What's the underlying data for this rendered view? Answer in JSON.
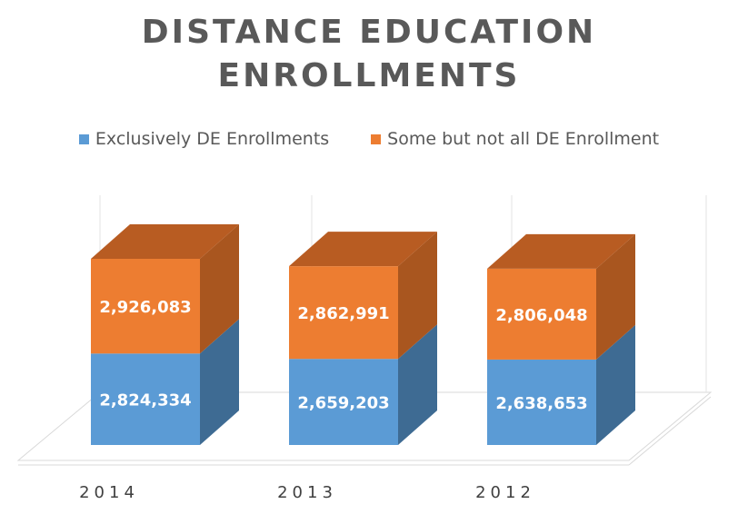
{
  "chart_data": {
    "type": "bar",
    "stacked": true,
    "three_d": true,
    "title_lines": [
      "DISTANCE EDUCATION",
      "ENROLLMENTS"
    ],
    "categories": [
      "2014",
      "2013",
      "2012"
    ],
    "series": [
      {
        "name": "Exclusively DE Enrollments",
        "values": [
          2824334,
          2659203,
          2638653
        ],
        "labels": [
          "2,824,334",
          "2,659,203",
          "2,638,653"
        ],
        "color": "#5B9BD5",
        "side_color": "#3E6B93",
        "top_color": "#7FB2E0"
      },
      {
        "name": "Some but not all DE Enrollment",
        "values": [
          2926083,
          2862991,
          2806048
        ],
        "labels": [
          "2,926,083",
          "2,862,991",
          "2,806,048"
        ],
        "color": "#ED7D31",
        "side_color": "#A9561F",
        "top_color": "#B85C22"
      }
    ],
    "legend_position": "top",
    "grid": false,
    "value_axis_visible": false
  }
}
